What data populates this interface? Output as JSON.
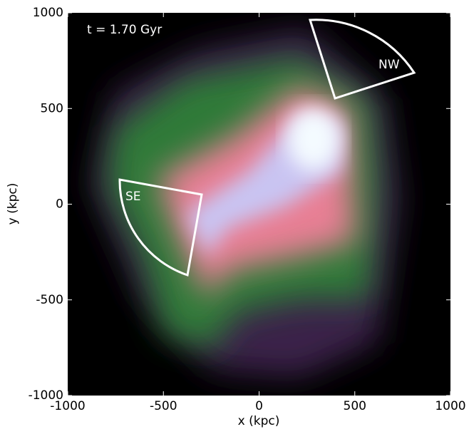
{
  "chart_data": {
    "type": "image",
    "title": "t = 1.70 Gyr",
    "annotations": [
      "NW",
      "SE"
    ],
    "xlabel": "x (kpc)",
    "ylabel": "y (kpc)",
    "xlim": [
      -1000,
      1000
    ],
    "ylim": [
      -1000,
      1000
    ],
    "xticks": [
      -1000,
      -500,
      0,
      500,
      1000
    ],
    "yticks": [
      -1000,
      -500,
      0,
      500,
      1000
    ]
  }
}
